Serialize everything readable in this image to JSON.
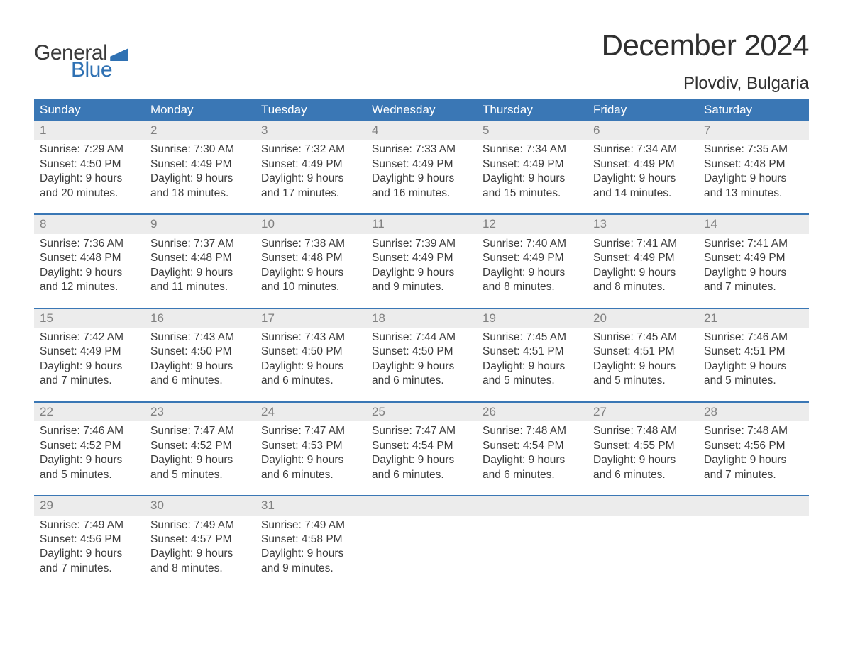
{
  "logo": {
    "text1": "General",
    "text2": "Blue"
  },
  "title": "December 2024",
  "location": "Plovdiv, Bulgaria",
  "colors": {
    "header_bg": "#3a77b5",
    "header_text": "#ffffff",
    "daynum_bg": "#ececec",
    "daynum_text": "#808080",
    "body_text": "#3c3c3c",
    "accent": "#2f71b3",
    "week_border": "#3a77b5",
    "background": "#ffffff"
  },
  "typography": {
    "title_fontsize": 42,
    "location_fontsize": 24,
    "header_fontsize": 17,
    "cell_fontsize": 15.5,
    "daynum_fontsize": 17,
    "logo_fontsize": 30
  },
  "labels": {
    "sunrise": "Sunrise:",
    "sunset": "Sunset:",
    "daylight": "Daylight:"
  },
  "day_headers": [
    "Sunday",
    "Monday",
    "Tuesday",
    "Wednesday",
    "Thursday",
    "Friday",
    "Saturday"
  ],
  "weeks": [
    [
      {
        "n": "1",
        "sunrise": "7:29 AM",
        "sunset": "4:50 PM",
        "daylight": "9 hours and 20 minutes."
      },
      {
        "n": "2",
        "sunrise": "7:30 AM",
        "sunset": "4:49 PM",
        "daylight": "9 hours and 18 minutes."
      },
      {
        "n": "3",
        "sunrise": "7:32 AM",
        "sunset": "4:49 PM",
        "daylight": "9 hours and 17 minutes."
      },
      {
        "n": "4",
        "sunrise": "7:33 AM",
        "sunset": "4:49 PM",
        "daylight": "9 hours and 16 minutes."
      },
      {
        "n": "5",
        "sunrise": "7:34 AM",
        "sunset": "4:49 PM",
        "daylight": "9 hours and 15 minutes."
      },
      {
        "n": "6",
        "sunrise": "7:34 AM",
        "sunset": "4:49 PM",
        "daylight": "9 hours and 14 minutes."
      },
      {
        "n": "7",
        "sunrise": "7:35 AM",
        "sunset": "4:48 PM",
        "daylight": "9 hours and 13 minutes."
      }
    ],
    [
      {
        "n": "8",
        "sunrise": "7:36 AM",
        "sunset": "4:48 PM",
        "daylight": "9 hours and 12 minutes."
      },
      {
        "n": "9",
        "sunrise": "7:37 AM",
        "sunset": "4:48 PM",
        "daylight": "9 hours and 11 minutes."
      },
      {
        "n": "10",
        "sunrise": "7:38 AM",
        "sunset": "4:48 PM",
        "daylight": "9 hours and 10 minutes."
      },
      {
        "n": "11",
        "sunrise": "7:39 AM",
        "sunset": "4:49 PM",
        "daylight": "9 hours and 9 minutes."
      },
      {
        "n": "12",
        "sunrise": "7:40 AM",
        "sunset": "4:49 PM",
        "daylight": "9 hours and 8 minutes."
      },
      {
        "n": "13",
        "sunrise": "7:41 AM",
        "sunset": "4:49 PM",
        "daylight": "9 hours and 8 minutes."
      },
      {
        "n": "14",
        "sunrise": "7:41 AM",
        "sunset": "4:49 PM",
        "daylight": "9 hours and 7 minutes."
      }
    ],
    [
      {
        "n": "15",
        "sunrise": "7:42 AM",
        "sunset": "4:49 PM",
        "daylight": "9 hours and 7 minutes."
      },
      {
        "n": "16",
        "sunrise": "7:43 AM",
        "sunset": "4:50 PM",
        "daylight": "9 hours and 6 minutes."
      },
      {
        "n": "17",
        "sunrise": "7:43 AM",
        "sunset": "4:50 PM",
        "daylight": "9 hours and 6 minutes."
      },
      {
        "n": "18",
        "sunrise": "7:44 AM",
        "sunset": "4:50 PM",
        "daylight": "9 hours and 6 minutes."
      },
      {
        "n": "19",
        "sunrise": "7:45 AM",
        "sunset": "4:51 PM",
        "daylight": "9 hours and 5 minutes."
      },
      {
        "n": "20",
        "sunrise": "7:45 AM",
        "sunset": "4:51 PM",
        "daylight": "9 hours and 5 minutes."
      },
      {
        "n": "21",
        "sunrise": "7:46 AM",
        "sunset": "4:51 PM",
        "daylight": "9 hours and 5 minutes."
      }
    ],
    [
      {
        "n": "22",
        "sunrise": "7:46 AM",
        "sunset": "4:52 PM",
        "daylight": "9 hours and 5 minutes."
      },
      {
        "n": "23",
        "sunrise": "7:47 AM",
        "sunset": "4:52 PM",
        "daylight": "9 hours and 5 minutes."
      },
      {
        "n": "24",
        "sunrise": "7:47 AM",
        "sunset": "4:53 PM",
        "daylight": "9 hours and 6 minutes."
      },
      {
        "n": "25",
        "sunrise": "7:47 AM",
        "sunset": "4:54 PM",
        "daylight": "9 hours and 6 minutes."
      },
      {
        "n": "26",
        "sunrise": "7:48 AM",
        "sunset": "4:54 PM",
        "daylight": "9 hours and 6 minutes."
      },
      {
        "n": "27",
        "sunrise": "7:48 AM",
        "sunset": "4:55 PM",
        "daylight": "9 hours and 6 minutes."
      },
      {
        "n": "28",
        "sunrise": "7:48 AM",
        "sunset": "4:56 PM",
        "daylight": "9 hours and 7 minutes."
      }
    ],
    [
      {
        "n": "29",
        "sunrise": "7:49 AM",
        "sunset": "4:56 PM",
        "daylight": "9 hours and 7 minutes."
      },
      {
        "n": "30",
        "sunrise": "7:49 AM",
        "sunset": "4:57 PM",
        "daylight": "9 hours and 8 minutes."
      },
      {
        "n": "31",
        "sunrise": "7:49 AM",
        "sunset": "4:58 PM",
        "daylight": "9 hours and 9 minutes."
      },
      null,
      null,
      null,
      null
    ]
  ]
}
